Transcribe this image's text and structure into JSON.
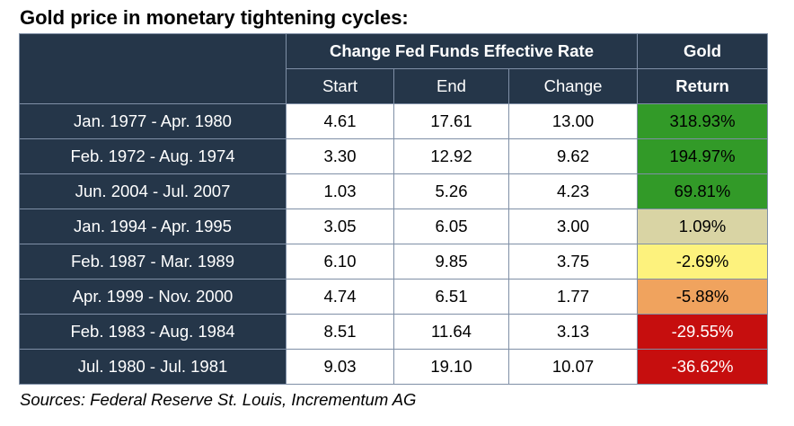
{
  "title": "Gold price in monetary tightening cycles:",
  "source": "Sources: Federal Reserve St. Louis, Incrementum AG",
  "chart_data": {
    "type": "table",
    "header_groups": [
      {
        "label": "",
        "span": 1
      },
      {
        "label": "Change Fed Funds Effective Rate",
        "span": 3
      },
      {
        "label": "Gold",
        "span": 1
      }
    ],
    "columns": [
      "",
      "Start",
      "End",
      "Change",
      "Return"
    ],
    "rows": [
      {
        "period": "Jan. 1977 - Apr. 1980",
        "start": "4.61",
        "end": "17.61",
        "change": "13.00",
        "return": "318.93%",
        "return_color": "#329a28"
      },
      {
        "period": "Feb. 1972 - Aug. 1974",
        "start": "3.30",
        "end": "12.92",
        "change": "9.62",
        "return": "194.97%",
        "return_color": "#329a28"
      },
      {
        "period": "Jun. 2004 - Jul. 2007",
        "start": "1.03",
        "end": "5.26",
        "change": "4.23",
        "return": "69.81%",
        "return_color": "#329a28"
      },
      {
        "period": "Jan. 1994 - Apr. 1995",
        "start": "3.05",
        "end": "6.05",
        "change": "3.00",
        "return": "1.09%",
        "return_color": "#d9d4a4"
      },
      {
        "period": "Feb. 1987 - Mar. 1989",
        "start": "6.10",
        "end": "9.85",
        "change": "3.75",
        "return": "-2.69%",
        "return_color": "#fdf27d"
      },
      {
        "period": "Apr. 1999 - Nov. 2000",
        "start": "4.74",
        "end": "6.51",
        "change": "1.77",
        "return": "-5.88%",
        "return_color": "#f0a35e"
      },
      {
        "period": "Feb. 1983 - Aug. 1984",
        "start": "8.51",
        "end": "11.64",
        "change": "3.13",
        "return": "-29.55%",
        "return_color": "#c60e0e"
      },
      {
        "period": "Jul. 1980 - Jul. 1981",
        "start": "9.03",
        "end": "19.10",
        "change": "10.07",
        "return": "-36.62%",
        "return_color": "#c60e0e"
      }
    ]
  }
}
